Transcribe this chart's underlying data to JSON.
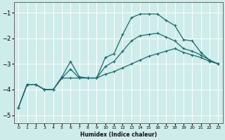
{
  "xlabel": "Humidex (Indice chaleur)",
  "bg_color": "#ceecea",
  "grid_color": "#ffffff",
  "line_color": "#1a6b6b",
  "xlim": [
    -0.5,
    23.5
  ],
  "ylim": [
    -5.3,
    -0.6
  ],
  "yticks": [
    -5,
    -4,
    -3,
    -2,
    -1
  ],
  "xticks": [
    0,
    1,
    2,
    3,
    4,
    5,
    6,
    7,
    8,
    9,
    10,
    11,
    12,
    13,
    14,
    15,
    16,
    17,
    18,
    19,
    20,
    21,
    22,
    23
  ],
  "line1_x": [
    0,
    1,
    2,
    3,
    4,
    5,
    6,
    7,
    8,
    9,
    10,
    11,
    12,
    13,
    14,
    15,
    16,
    17,
    18,
    19,
    20,
    21,
    22,
    23
  ],
  "line1_y": [
    -4.7,
    -3.8,
    -3.8,
    -4.0,
    -4.0,
    -3.55,
    -3.55,
    -3.55,
    -3.55,
    -3.55,
    -3.4,
    -3.3,
    -3.15,
    -3.0,
    -2.85,
    -2.7,
    -2.6,
    -2.5,
    -2.4,
    -2.55,
    -2.65,
    -2.75,
    -2.9,
    -3.0
  ],
  "line2_x": [
    0,
    1,
    2,
    3,
    4,
    5,
    6,
    7,
    8,
    9,
    10,
    11,
    12,
    13,
    14,
    15,
    16,
    17,
    18,
    19,
    20,
    21,
    22,
    23
  ],
  "line2_y": [
    -4.7,
    -3.8,
    -3.8,
    -4.0,
    -4.0,
    -3.55,
    -3.2,
    -3.55,
    -3.55,
    -3.55,
    -3.1,
    -2.9,
    -2.5,
    -2.1,
    -1.9,
    -1.85,
    -1.8,
    -1.95,
    -2.1,
    -2.4,
    -2.5,
    -2.65,
    -2.85,
    -3.0
  ],
  "line3_x": [
    0,
    1,
    2,
    3,
    4,
    5,
    6,
    7,
    8,
    9,
    10,
    11,
    12,
    13,
    14,
    15,
    16,
    17,
    18,
    19,
    20,
    21,
    22,
    23
  ],
  "line3_y": [
    -4.7,
    -3.8,
    -3.8,
    -4.0,
    -4.0,
    -3.5,
    -2.9,
    -3.5,
    -3.55,
    -3.55,
    -2.75,
    -2.6,
    -1.85,
    -1.2,
    -1.05,
    -1.05,
    -1.05,
    -1.3,
    -1.5,
    -2.05,
    -2.1,
    -2.55,
    -2.85,
    -3.0
  ]
}
